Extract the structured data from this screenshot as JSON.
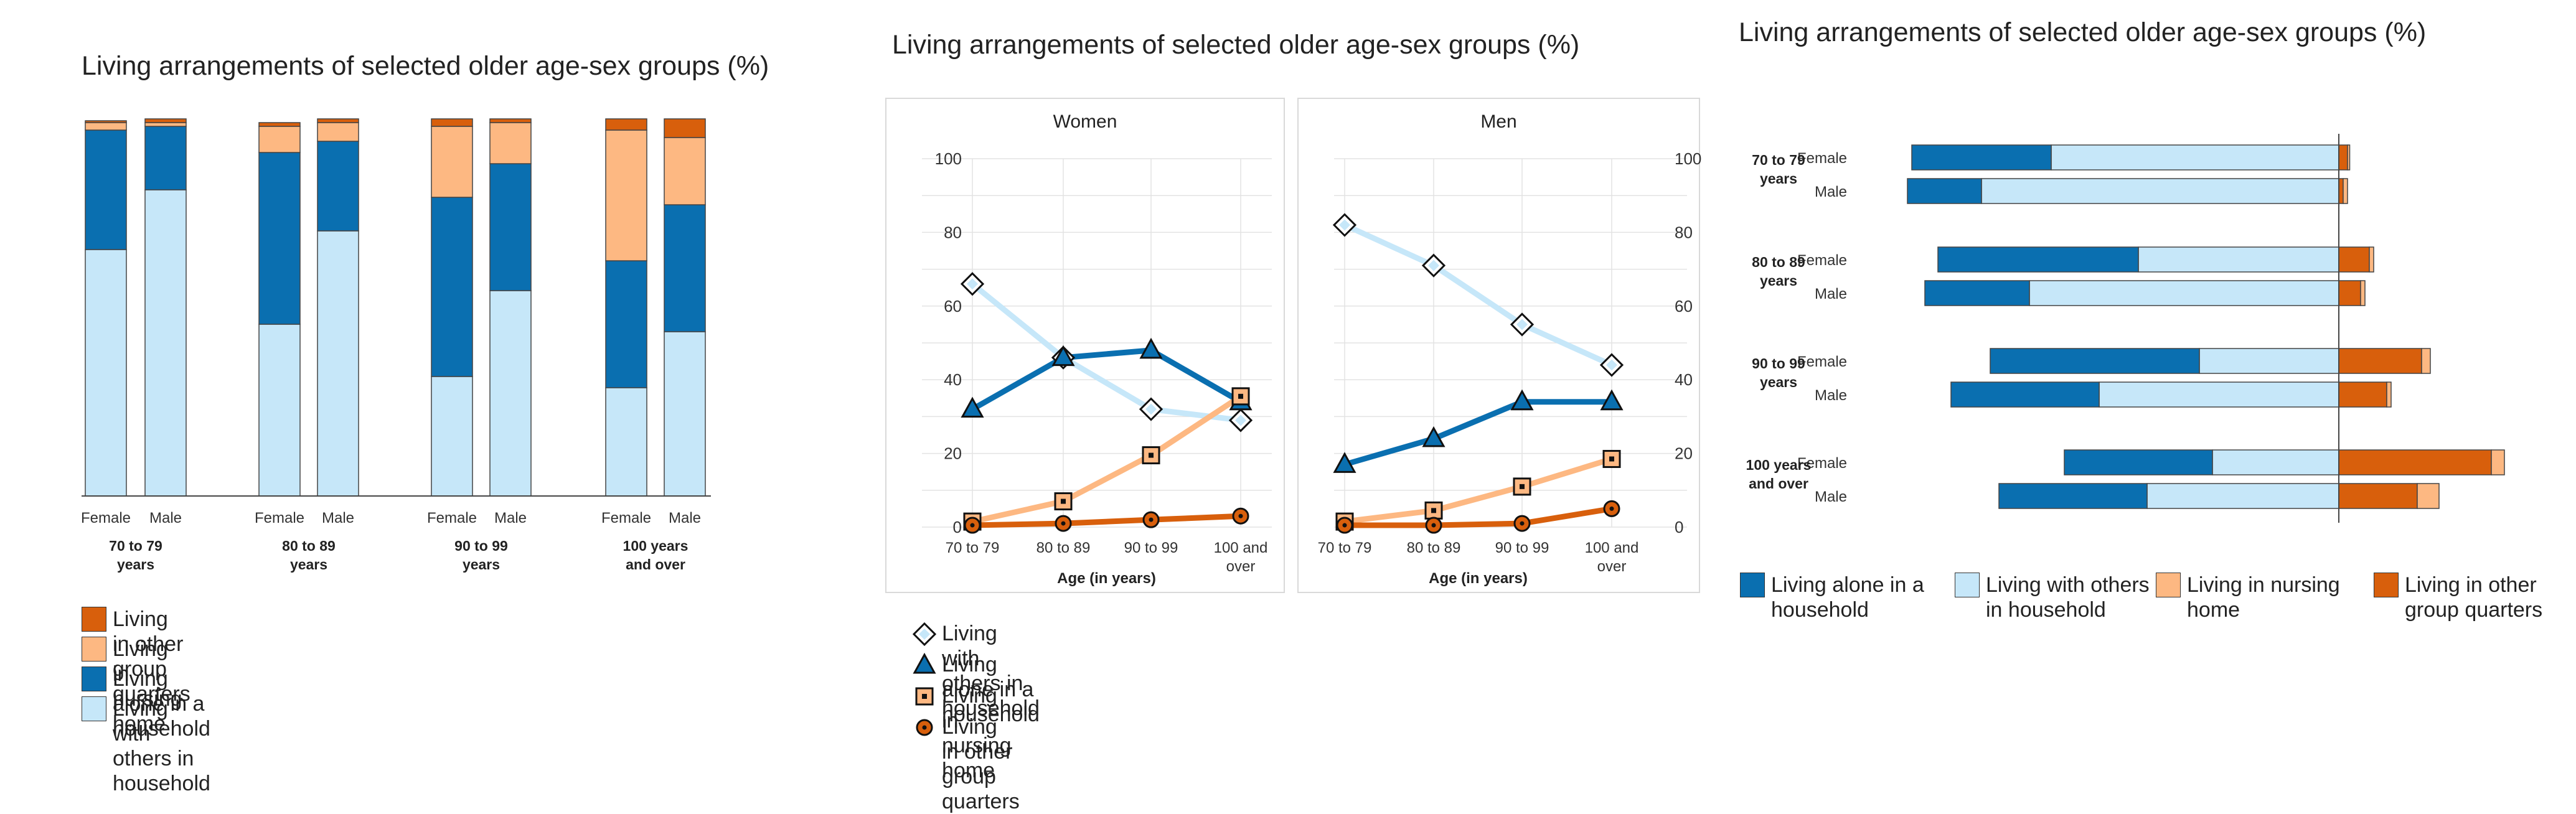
{
  "colors": {
    "living_alone": "#0a6fb0",
    "living_with_others": "#c6e7f9",
    "nursing_home": "#fdb882",
    "other_group_quarters": "#d85f0c",
    "gray_border": "#444444"
  },
  "panel1": {
    "title": "Living arrangements of selected older age-sex groups (%)",
    "legend": [
      {
        "label": "Living in other group quarters",
        "color_key": "other_group_quarters"
      },
      {
        "label": "Living in nursing home",
        "color_key": "nursing_home"
      },
      {
        "label": "Living alone in a household",
        "color_key": "living_alone"
      },
      {
        "label": "Living with others in household",
        "color_key": "living_with_others"
      }
    ]
  },
  "panel2": {
    "title": "Living arrangements of selected older age-sex groups (%)",
    "xlabel": "Age (in years)",
    "legend": [
      {
        "label": "Living with others in household",
        "marker": "diamond",
        "color_key": "living_with_others"
      },
      {
        "label": "Living alone in a household",
        "marker": "triangle",
        "color_key": "living_alone"
      },
      {
        "label": "Living in nursing home",
        "marker": "square",
        "color_key": "nursing_home"
      },
      {
        "label": "Living in other group quarters",
        "marker": "circle",
        "color_key": "other_group_quarters"
      }
    ]
  },
  "panel3": {
    "title": "Living arrangements of selected older age-sex groups (%)",
    "legend": [
      {
        "label": "Living alone in a household",
        "color_key": "living_alone"
      },
      {
        "label": "Living with others in household",
        "color_key": "living_with_others"
      },
      {
        "label": "Living in nursing home",
        "color_key": "nursing_home"
      },
      {
        "label": "Living in other group quarters",
        "color_key": "other_group_quarters"
      }
    ]
  },
  "chart_data": [
    {
      "type": "bar",
      "stacked": true,
      "title": "Living arrangements of selected older age-sex groups (%)",
      "groups": [
        "70 to 79 years",
        "80 to 89 years",
        "90 to 99 years",
        "100 years and over"
      ],
      "group_labels": [
        [
          "70 to 79",
          "years"
        ],
        [
          "80 to 89",
          "years"
        ],
        [
          "90 to 99",
          "years"
        ],
        [
          "100 years",
          "and over"
        ]
      ],
      "sexes": [
        "Female",
        "Male"
      ],
      "ylim": [
        0,
        100
      ],
      "series": [
        {
          "name": "Living with others in household",
          "color_key": "living_with_others",
          "values": [
            [
              66,
              82
            ],
            [
              46,
              71
            ],
            [
              32,
              55
            ],
            [
              29,
              44
            ]
          ]
        },
        {
          "name": "Living alone in a household",
          "color_key": "living_alone",
          "values": [
            [
              32,
              17
            ],
            [
              46,
              24
            ],
            [
              48,
              34
            ],
            [
              34,
              34
            ]
          ]
        },
        {
          "name": "Living in nursing home",
          "color_key": "nursing_home",
          "values": [
            [
              2,
              1
            ],
            [
              7,
              5
            ],
            [
              19,
              11
            ],
            [
              35,
              18
            ]
          ]
        },
        {
          "name": "Living in other group quarters",
          "color_key": "other_group_quarters",
          "values": [
            [
              0.5,
              1
            ],
            [
              1,
              1
            ],
            [
              2,
              1
            ],
            [
              3,
              5
            ]
          ]
        }
      ]
    },
    {
      "type": "line",
      "title": "Living arrangements of selected older age-sex groups (%)",
      "xlabel": "Age (in years)",
      "ylim": [
        0,
        100
      ],
      "yticks": [
        0,
        20,
        40,
        60,
        80,
        100
      ],
      "categories": [
        "70 to 79",
        "80 to 89",
        "90 to 99",
        "100 and over"
      ],
      "category_labels": [
        [
          "70 to 79"
        ],
        [
          "80 to 89"
        ],
        [
          "90 to 99"
        ],
        [
          "100 and",
          "over"
        ]
      ],
      "facets": [
        {
          "name": "Women",
          "series": [
            {
              "name": "Living with others in household",
              "marker": "diamond",
              "color_key": "living_with_others",
              "values": [
                66,
                46,
                32,
                29
              ]
            },
            {
              "name": "Living alone in a household",
              "marker": "triangle",
              "color_key": "living_alone",
              "values": [
                32,
                46,
                48,
                34
              ]
            },
            {
              "name": "Living in nursing home",
              "marker": "square",
              "color_key": "nursing_home",
              "values": [
                1.5,
                7,
                19.5,
                35.5
              ]
            },
            {
              "name": "Living in other group quarters",
              "marker": "circle",
              "color_key": "other_group_quarters",
              "values": [
                0.5,
                1,
                2,
                3
              ]
            }
          ]
        },
        {
          "name": "Men",
          "series": [
            {
              "name": "Living with others in household",
              "marker": "diamond",
              "color_key": "living_with_others",
              "values": [
                82,
                71,
                55,
                44
              ]
            },
            {
              "name": "Living alone in a household",
              "marker": "triangle",
              "color_key": "living_alone",
              "values": [
                17,
                24,
                34,
                34
              ]
            },
            {
              "name": "Living in nursing home",
              "marker": "square",
              "color_key": "nursing_home",
              "values": [
                1.5,
                4.5,
                11,
                18.5
              ]
            },
            {
              "name": "Living in other group quarters",
              "marker": "circle",
              "color_key": "other_group_quarters",
              "values": [
                0.5,
                0.5,
                1,
                5
              ]
            }
          ]
        }
      ]
    },
    {
      "type": "bar",
      "orientation": "horizontal",
      "diverging": true,
      "title": "Living arrangements of selected older age-sex groups (%)",
      "groups": [
        "70 to 79 years",
        "80 to 89 years",
        "90 to 99 years",
        "100 years and over"
      ],
      "group_labels": [
        [
          "70 to 79",
          "years"
        ],
        [
          "80 to 89",
          "years"
        ],
        [
          "90 to 99",
          "years"
        ],
        [
          "100 years",
          "and over"
        ]
      ],
      "sexes": [
        "Female",
        "Male"
      ],
      "left_side": [
        "Living alone in a household",
        "Living with others in household"
      ],
      "right_side": [
        "Living in nursing home",
        "Living in other group quarters"
      ],
      "series": [
        {
          "name": "Living alone in a household",
          "color_key": "living_alone",
          "values": [
            [
              32,
              17
            ],
            [
              46,
              24
            ],
            [
              48,
              34
            ],
            [
              34,
              34
            ]
          ]
        },
        {
          "name": "Living with others in household",
          "color_key": "living_with_others",
          "values": [
            [
              66,
              82
            ],
            [
              46,
              71
            ],
            [
              32,
              55
            ],
            [
              29,
              44
            ]
          ]
        },
        {
          "name": "Living in nursing home",
          "color_key": "other_group_quarters",
          "values": [
            [
              2,
              1
            ],
            [
              7,
              5
            ],
            [
              19,
              11
            ],
            [
              35,
              18
            ]
          ]
        },
        {
          "name": "Living in other group quarters",
          "color_key": "nursing_home",
          "values": [
            [
              0.5,
              1
            ],
            [
              1,
              1
            ],
            [
              2,
              1
            ],
            [
              3,
              5
            ]
          ]
        }
      ]
    }
  ]
}
